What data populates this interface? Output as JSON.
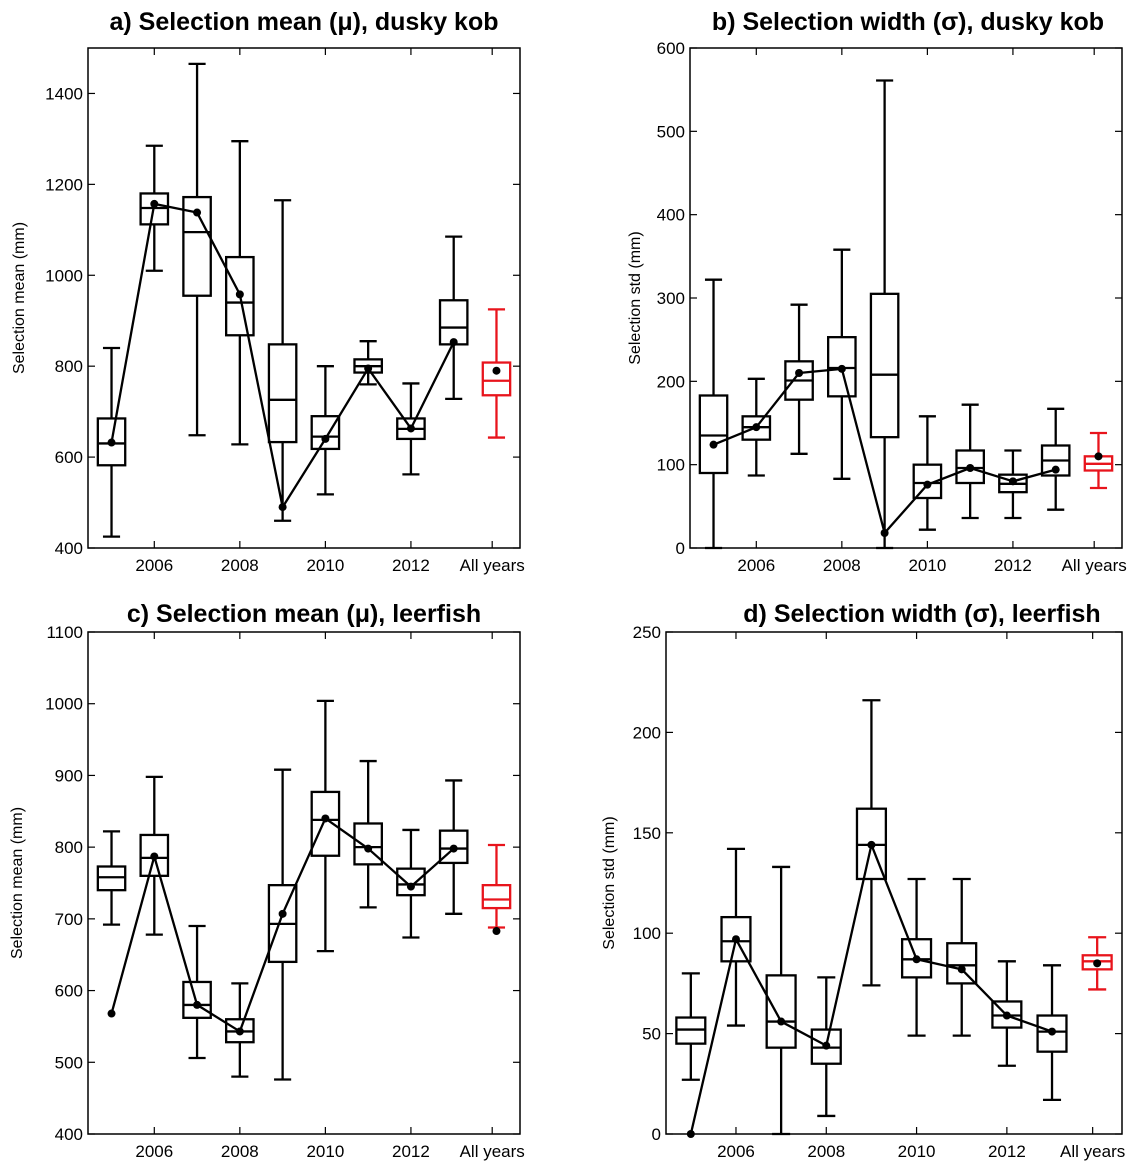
{
  "chart_data": [
    {
      "id": "a",
      "type": "box",
      "title": "a) Selection mean (μ), dusky kob",
      "ylabel": "Selection mean (mm)",
      "xlabel": "",
      "ylim": [
        400,
        1500
      ],
      "yticks": [
        400,
        600,
        800,
        1000,
        1200,
        1400
      ],
      "x_positions": [
        2005,
        2006,
        2007,
        2008,
        2009,
        2010,
        2011,
        2012,
        2013,
        2014
      ],
      "xtick_positions": [
        2006,
        2008,
        2010,
        2012,
        2013.9
      ],
      "xtick_labels": [
        "2006",
        "2008",
        "2010",
        "2012",
        "All years"
      ],
      "boxes": [
        {
          "x": 2005,
          "min": 425,
          "q1": 582,
          "median": 630,
          "q3": 685,
          "max": 840
        },
        {
          "x": 2006,
          "min": 1010,
          "q1": 1112,
          "median": 1148,
          "q3": 1180,
          "max": 1285
        },
        {
          "x": 2007,
          "min": 648,
          "q1": 955,
          "median": 1095,
          "q3": 1172,
          "max": 1465
        },
        {
          "x": 2008,
          "min": 628,
          "q1": 868,
          "median": 940,
          "q3": 1040,
          "max": 1295
        },
        {
          "x": 2009,
          "min": 460,
          "q1": 633,
          "median": 726,
          "q3": 848,
          "max": 1165
        },
        {
          "x": 2010,
          "min": 518,
          "q1": 618,
          "median": 645,
          "q3": 690,
          "max": 800
        },
        {
          "x": 2011,
          "min": 760,
          "q1": 786,
          "median": 800,
          "q3": 815,
          "max": 855
        },
        {
          "x": 2012,
          "min": 562,
          "q1": 640,
          "median": 662,
          "q3": 685,
          "max": 762
        },
        {
          "x": 2013,
          "min": 728,
          "q1": 848,
          "median": 885,
          "q3": 945,
          "max": 1085
        }
      ],
      "all_years_box": {
        "x": 2014,
        "min": 643,
        "q1": 736,
        "median": 768,
        "q3": 808,
        "max": 925
      },
      "points": [
        {
          "x": 2005,
          "y": 632
        },
        {
          "x": 2006,
          "y": 1157
        },
        {
          "x": 2007,
          "y": 1138
        },
        {
          "x": 2008,
          "y": 958
        },
        {
          "x": 2009,
          "y": 490
        },
        {
          "x": 2010,
          "y": 640
        },
        {
          "x": 2011,
          "y": 795
        },
        {
          "x": 2012,
          "y": 663
        },
        {
          "x": 2013,
          "y": 853
        }
      ],
      "all_years_point": {
        "x": 2014,
        "y": 790
      },
      "colors": {
        "boxes": "#000000",
        "all_years": "#e8141c",
        "line": "#000000"
      }
    },
    {
      "id": "b",
      "type": "box",
      "title": "b) Selection width (σ), dusky kob",
      "ylabel": "Selection std (mm)",
      "xlabel": "",
      "ylim": [
        0,
        600
      ],
      "yticks": [
        0,
        100,
        200,
        300,
        400,
        500,
        600
      ],
      "x_positions": [
        2005,
        2006,
        2007,
        2008,
        2009,
        2010,
        2011,
        2012,
        2013,
        2014
      ],
      "xtick_positions": [
        2006,
        2008,
        2010,
        2012,
        2013.9
      ],
      "xtick_labels": [
        "2006",
        "2008",
        "2010",
        "2012",
        "All years"
      ],
      "boxes": [
        {
          "x": 2005,
          "min": 0,
          "q1": 90,
          "median": 135,
          "q3": 183,
          "max": 322
        },
        {
          "x": 2006,
          "min": 87,
          "q1": 130,
          "median": 145,
          "q3": 158,
          "max": 203
        },
        {
          "x": 2007,
          "min": 113,
          "q1": 178,
          "median": 201,
          "q3": 224,
          "max": 292
        },
        {
          "x": 2008,
          "min": 83,
          "q1": 182,
          "median": 216,
          "q3": 253,
          "max": 358
        },
        {
          "x": 2009,
          "min": 0,
          "q1": 133,
          "median": 208,
          "q3": 305,
          "max": 561
        },
        {
          "x": 2010,
          "min": 22,
          "q1": 60,
          "median": 78,
          "q3": 100,
          "max": 158
        },
        {
          "x": 2011,
          "min": 36,
          "q1": 78,
          "median": 96,
          "q3": 117,
          "max": 172
        },
        {
          "x": 2012,
          "min": 36,
          "q1": 67,
          "median": 77,
          "q3": 88,
          "max": 117
        },
        {
          "x": 2013,
          "min": 46,
          "q1": 87,
          "median": 105,
          "q3": 123,
          "max": 167
        }
      ],
      "all_years_box": {
        "x": 2014,
        "min": 72,
        "q1": 93,
        "median": 101,
        "q3": 110,
        "max": 138
      },
      "points": [
        {
          "x": 2005,
          "y": 124
        },
        {
          "x": 2006,
          "y": 145
        },
        {
          "x": 2007,
          "y": 210
        },
        {
          "x": 2008,
          "y": 215
        },
        {
          "x": 2009,
          "y": 18
        },
        {
          "x": 2010,
          "y": 76
        },
        {
          "x": 2011,
          "y": 96
        },
        {
          "x": 2012,
          "y": 80
        },
        {
          "x": 2013,
          "y": 94
        }
      ],
      "all_years_point": {
        "x": 2014,
        "y": 110
      },
      "colors": {
        "boxes": "#000000",
        "all_years": "#e8141c",
        "line": "#000000"
      }
    },
    {
      "id": "c",
      "type": "box",
      "title": "c) Selection mean (μ), leerfish",
      "ylabel": "Selection mean (mm)",
      "xlabel": "",
      "ylim": [
        400,
        1100
      ],
      "yticks": [
        400,
        500,
        600,
        700,
        800,
        900,
        1000,
        1100
      ],
      "x_positions": [
        2005,
        2006,
        2007,
        2008,
        2009,
        2010,
        2011,
        2012,
        2013,
        2014
      ],
      "xtick_positions": [
        2006,
        2008,
        2010,
        2012,
        2013.9
      ],
      "xtick_labels": [
        "2006",
        "2008",
        "2010",
        "2012",
        "All years"
      ],
      "boxes": [
        {
          "x": 2005,
          "min": 692,
          "q1": 740,
          "median": 758,
          "q3": 773,
          "max": 822
        },
        {
          "x": 2006,
          "min": 678,
          "q1": 760,
          "median": 785,
          "q3": 817,
          "max": 898
        },
        {
          "x": 2007,
          "min": 506,
          "q1": 562,
          "median": 580,
          "q3": 612,
          "max": 690
        },
        {
          "x": 2008,
          "min": 480,
          "q1": 528,
          "median": 543,
          "q3": 560,
          "max": 610
        },
        {
          "x": 2009,
          "min": 476,
          "q1": 640,
          "median": 693,
          "q3": 747,
          "max": 908
        },
        {
          "x": 2010,
          "min": 655,
          "q1": 788,
          "median": 838,
          "q3": 877,
          "max": 1004
        },
        {
          "x": 2011,
          "min": 716,
          "q1": 776,
          "median": 800,
          "q3": 833,
          "max": 920
        },
        {
          "x": 2012,
          "min": 674,
          "q1": 733,
          "median": 748,
          "q3": 770,
          "max": 824
        },
        {
          "x": 2013,
          "min": 707,
          "q1": 778,
          "median": 798,
          "q3": 823,
          "max": 893
        }
      ],
      "all_years_box": {
        "x": 2014,
        "min": 688,
        "q1": 715,
        "median": 727,
        "q3": 747,
        "max": 803
      },
      "points": [
        {
          "x": 2005,
          "y": 568
        },
        {
          "x": 2006,
          "y": 787
        },
        {
          "x": 2007,
          "y": 580
        },
        {
          "x": 2008,
          "y": 543
        },
        {
          "x": 2009,
          "y": 707
        },
        {
          "x": 2010,
          "y": 840
        },
        {
          "x": 2011,
          "y": 798
        },
        {
          "x": 2012,
          "y": 745
        },
        {
          "x": 2013,
          "y": 798
        }
      ],
      "all_years_point": {
        "x": 2014,
        "y": 683
      },
      "all_years_point_color": "#000000",
      "colors": {
        "boxes": "#000000",
        "all_years": "#e8141c",
        "line": "#000000"
      }
    },
    {
      "id": "d",
      "type": "box",
      "title": "d) Selection width (σ),  leerfish",
      "ylabel": "Selection std (mm)",
      "xlabel": "",
      "ylim": [
        0,
        250
      ],
      "yticks": [
        0,
        50,
        100,
        150,
        200,
        250
      ],
      "x_positions": [
        2005,
        2006,
        2007,
        2008,
        2009,
        2010,
        2011,
        2012,
        2013,
        2014
      ],
      "xtick_positions": [
        2006,
        2008,
        2010,
        2012,
        2013.9
      ],
      "xtick_labels": [
        "2006",
        "2008",
        "2010",
        "2012",
        "All years"
      ],
      "boxes": [
        {
          "x": 2005,
          "min": 27,
          "q1": 45,
          "median": 52,
          "q3": 58,
          "max": 80
        },
        {
          "x": 2006,
          "min": 54,
          "q1": 86,
          "median": 96,
          "q3": 108,
          "max": 142
        },
        {
          "x": 2007,
          "min": 0,
          "q1": 43,
          "median": 56,
          "q3": 79,
          "max": 133
        },
        {
          "x": 2008,
          "min": 9,
          "q1": 35,
          "median": 43,
          "q3": 52,
          "max": 78
        },
        {
          "x": 2009,
          "min": 74,
          "q1": 127,
          "median": 144,
          "q3": 162,
          "max": 216
        },
        {
          "x": 2010,
          "min": 49,
          "q1": 78,
          "median": 87,
          "q3": 97,
          "max": 127
        },
        {
          "x": 2011,
          "min": 49,
          "q1": 75,
          "median": 84,
          "q3": 95,
          "max": 127
        },
        {
          "x": 2012,
          "min": 34,
          "q1": 53,
          "median": 59,
          "q3": 66,
          "max": 86
        },
        {
          "x": 2013,
          "min": 17,
          "q1": 41,
          "median": 51,
          "q3": 59,
          "max": 84
        }
      ],
      "all_years_box": {
        "x": 2014,
        "min": 72,
        "q1": 82,
        "median": 86,
        "q3": 89,
        "max": 98
      },
      "points": [
        {
          "x": 2005,
          "y": 0
        },
        {
          "x": 2006,
          "y": 97
        },
        {
          "x": 2007,
          "y": 56
        },
        {
          "x": 2008,
          "y": 44
        },
        {
          "x": 2009,
          "y": 144
        },
        {
          "x": 2010,
          "y": 87
        },
        {
          "x": 2011,
          "y": 82
        },
        {
          "x": 2012,
          "y": 59
        },
        {
          "x": 2013,
          "y": 51
        }
      ],
      "all_years_point": {
        "x": 2014,
        "y": 85
      },
      "colors": {
        "boxes": "#000000",
        "all_years": "#e8141c",
        "line": "#000000"
      }
    }
  ]
}
